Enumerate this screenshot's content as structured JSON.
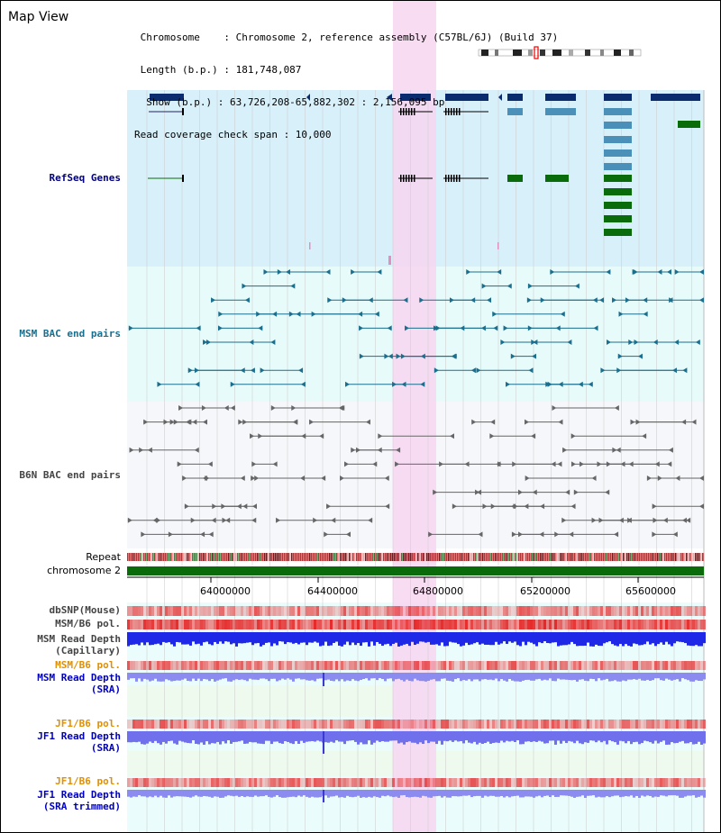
{
  "header": {
    "title": "Map View",
    "info_lines": [
      " Chromosome    : Chromosome 2, reference assembly (C57BL/6J) (Build 37)",
      " Length (b.p.) : 181,748,087",
      "  Show (b.p.) : 63,726,208-65,882,302 : 2,156,095 bp",
      "Read coverage check span : 10,000"
    ]
  },
  "tracks": {
    "refseq": "RefSeq Genes",
    "msm_bac": "MSM BAC end pairs",
    "b6n_bac": "B6N BAC end pairs",
    "repeat": "Repeat",
    "chromosome": "chromosome 2",
    "dbsnp": "dbSNP(Mouse)",
    "msm_b6_pol": "MSM/B6 pol.",
    "msm_depth_cap_1": "MSM Read Depth",
    "msm_depth_cap_2": "(Capillary)",
    "msm_b6_pol2": "MSM/B6 pol.",
    "msm_depth_sra_1": "MSM Read Depth",
    "msm_depth_sra_2": "(SRA)",
    "jf1_pol": "JF1/B6 pol.",
    "jf1_depth_1": "JF1 Read Depth",
    "jf1_depth_2": "(SRA)",
    "jf1_pol2": "JF1/B6 pol.",
    "jf1_trim_1": "JF1 Read Depth",
    "jf1_trim_2": "(SRA trimmed)"
  },
  "axis": {
    "ticks": [
      "64000000",
      "64400000",
      "64800000",
      "65200000",
      "65600000"
    ]
  },
  "colors": {
    "refseq_bg": "#d8f0fa",
    "msm_bac_bg": "#e8fbfb",
    "b6n_bac_bg": "#f6f7fb",
    "highlight": "#f7d6f0",
    "gene_navy": "#0a2c6e",
    "gene_light": "#4a90b8",
    "gene_green": "#0a6b0a",
    "msm_line": "#1a6e8e",
    "b6n_line": "#666666",
    "chromosome_bar": "#0a6b0a",
    "label_navy": "#000080",
    "label_teal": "#1a6e8e",
    "label_grey": "#333333",
    "label_orange": "#e09000",
    "label_blue": "#0000c0",
    "depth_blue": "#1e28e6",
    "depth_light": "#8c8cf0"
  }
}
